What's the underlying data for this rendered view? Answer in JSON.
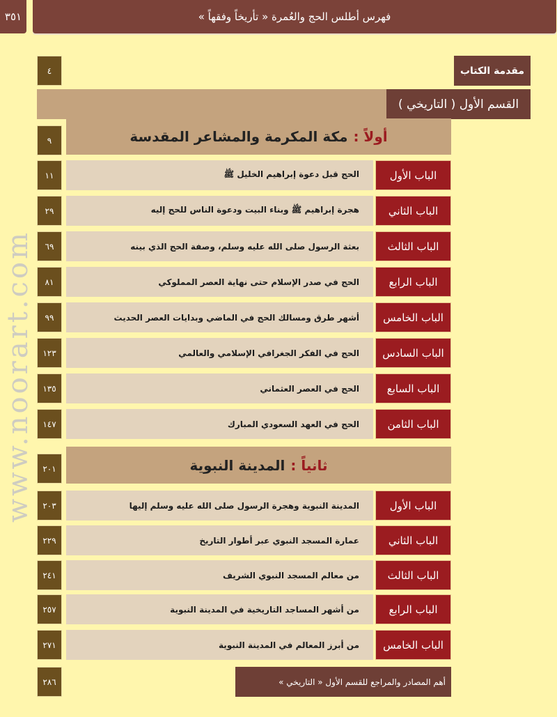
{
  "header": {
    "page_number": "٣٥١",
    "title": "فهرس أطلس الحج والعُمرة « تأريخاً وفقهاً »"
  },
  "intro": {
    "label": "مقدمة الكتاب",
    "page": "٤"
  },
  "part": {
    "label": "القسم الأول ( التاريخي )"
  },
  "section1": {
    "prefix": "أولاً :",
    "title": "مكة المكرمة والمشاعر المقدسة",
    "page": "٩",
    "chapters": [
      {
        "label": "الباب الأول",
        "title": "الحج قبل دعوة إبراهيم الخليل ﷺ",
        "page": "١١"
      },
      {
        "label": "الباب الثاني",
        "title": "هجرة إبراهيم ﷺ وبناء البيت ودعوة الناس للحج إليه",
        "page": "٢٩"
      },
      {
        "label": "الباب الثالث",
        "title": "بعثة الرسول صلى الله عليه وسلم، وصفة الحج الذي بينه",
        "page": "٦٩"
      },
      {
        "label": "الباب الرابع",
        "title": "الحج في صدر الإسلام حتى نهاية العصر المملوكي",
        "page": "٨١"
      },
      {
        "label": "الباب الخامس",
        "title": "أشهر طرق ومسالك الحج في الماضي وبدايات العصر الحديث",
        "page": "٩٩"
      },
      {
        "label": "الباب السادس",
        "title": "الحج في الفكر الجغرافي الإسلامي والعالمي",
        "page": "١٢٣"
      },
      {
        "label": "الباب السابع",
        "title": "الحج في العصر العثماني",
        "page": "١٣٥"
      },
      {
        "label": "الباب الثامن",
        "title": "الحج في العهد السعودي المبارك",
        "page": "١٤٧"
      }
    ]
  },
  "section2": {
    "prefix": "ثانياً :",
    "title": "المدينة النبوية",
    "page": "٢٠١",
    "chapters": [
      {
        "label": "الباب الأول",
        "title": "المدينة النبوية وهجرة الرسول صلى الله عليه وسلم إليها",
        "page": "٢٠٣"
      },
      {
        "label": "الباب الثاني",
        "title": "عمارة المسجد النبوي عبر أطوار التاريخ",
        "page": "٢٢٩"
      },
      {
        "label": "الباب الثالث",
        "title": "من معالم المسجد النبوي الشريف",
        "page": "٢٤١"
      },
      {
        "label": "الباب الرابع",
        "title": "من أشهر المساجد التاريخية في المدينة النبوية",
        "page": "٢٥٧"
      },
      {
        "label": "الباب الخامس",
        "title": "من أبرز المعالم في المدينة النبوية",
        "page": "٢٧١"
      }
    ]
  },
  "references": {
    "label": "أهم المصادر والمراجع للقسم الأول « التاريخي »",
    "page": "٢٨٦"
  },
  "watermark": "www.noorart.com",
  "colors": {
    "page": "#fff6ad",
    "header": "#7b4239",
    "chapter_label": "#9b1c20",
    "page_box": "#6b4f1e",
    "band": "#c4a37e",
    "row": "#e3d3bd"
  }
}
